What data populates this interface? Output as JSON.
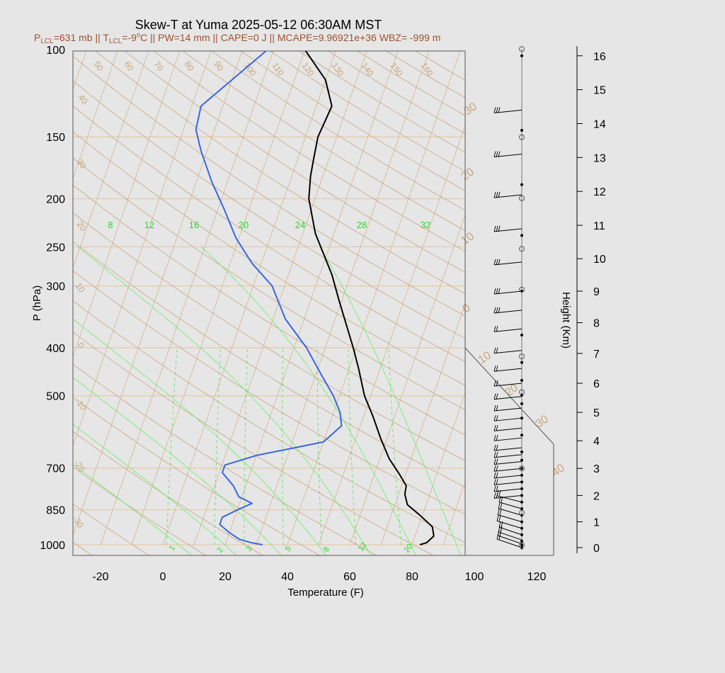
{
  "chart_data": {
    "type": "line",
    "title": "Skew-T at Yuma 2025-05-12 06:30AM MST",
    "subtitle": {
      "lcl_p_label": "P",
      "lcl_p_sub": "LCL",
      "lcl_p_value": "=631 mb",
      "sep1": " || ",
      "lcl_t_label": "T",
      "lcl_t_sub": "LCL",
      "lcl_t_value": "=-9",
      "lcl_t_deg": "o",
      "lcl_t_unit": "C",
      "rest": " || PW=14 mm || CAPE=0 J || MCAPE=9.96921e+36 WBZ= -999 m"
    },
    "xlabel": "Temperature (F)",
    "ylabel": "P (hPa)",
    "y2label": "Height (Km)",
    "xlim": [
      -28,
      125
    ],
    "x_ticks": [
      "-20",
      "0",
      "20",
      "40",
      "60",
      "80",
      "100",
      "120"
    ],
    "y_ticks": [
      "100",
      "150",
      "200",
      "250",
      "300",
      "400",
      "500",
      "700",
      "850",
      "1000"
    ],
    "height_ticks": [
      "0",
      "1",
      "2",
      "3",
      "4",
      "5",
      "6",
      "7",
      "8",
      "9",
      "10",
      "11",
      "12",
      "13",
      "14",
      "15",
      "16"
    ],
    "isotherm_labels": [
      "50",
      "60",
      "70",
      "80",
      "90",
      "100",
      "110",
      "120",
      "130",
      "140",
      "150",
      "160"
    ],
    "dry_adiabat_labels": [
      "40",
      "30",
      "20",
      "10",
      "0",
      "-10",
      "-20",
      "-30"
    ],
    "right_labels": [
      "30",
      "20",
      "10",
      "0",
      "10",
      "20",
      "30",
      "40"
    ],
    "mixing_ratio_top": [
      "8",
      "12",
      "16",
      "20",
      "24",
      "28",
      "32"
    ],
    "mixing_ratio_bottom": [
      "1",
      "2",
      "3",
      "5",
      "8",
      "12",
      "20"
    ],
    "series": [
      {
        "name": "",
        "color": "#000000",
        "points": [
          [
            82.5,
            1000
          ],
          [
            84.5,
            990
          ],
          [
            86,
            960
          ],
          [
            84.5,
            920
          ],
          [
            79,
            870
          ],
          [
            74,
            830
          ],
          [
            72,
            790
          ],
          [
            71.5,
            760
          ],
          [
            68,
            720
          ],
          [
            63,
            670
          ],
          [
            58,
            610
          ],
          [
            53,
            550
          ],
          [
            48,
            500
          ],
          [
            43,
            440
          ],
          [
            39,
            400
          ],
          [
            29,
            320
          ],
          [
            24,
            285
          ],
          [
            14,
            235
          ],
          [
            8,
            200
          ],
          [
            6,
            180
          ],
          [
            5,
            165
          ],
          [
            4,
            150
          ],
          [
            5,
            130
          ],
          [
            0,
            115
          ],
          [
            -10,
            100
          ]
        ]
      },
      {
        "name": "",
        "color": "#3a66e0",
        "points": [
          [
            32,
            1000
          ],
          [
            28,
            990
          ],
          [
            24,
            975
          ],
          [
            20,
            945
          ],
          [
            16,
            910
          ],
          [
            16,
            880
          ],
          [
            20,
            850
          ],
          [
            24,
            825
          ],
          [
            19,
            800
          ],
          [
            16,
            760
          ],
          [
            11,
            715
          ],
          [
            11,
            690
          ],
          [
            20,
            660
          ],
          [
            40,
            620
          ],
          [
            44,
            575
          ],
          [
            42,
            540
          ],
          [
            38,
            500
          ],
          [
            32,
            455
          ],
          [
            24,
            400
          ],
          [
            14,
            350
          ],
          [
            6,
            300
          ],
          [
            -3,
            270
          ],
          [
            -11,
            240
          ],
          [
            -18,
            210
          ],
          [
            -25,
            185
          ],
          [
            -32,
            160
          ],
          [
            -36,
            145
          ],
          [
            -37,
            130
          ],
          [
            -30,
            115
          ],
          [
            -22,
            100
          ]
        ]
      }
    ],
    "wind_barb_heights_km": [
      0.0,
      0.15,
      0.3,
      0.5,
      0.75,
      1.0,
      1.25,
      1.5,
      1.75,
      2.0,
      2.25,
      2.5,
      2.75,
      3.0,
      3.25,
      3.5,
      3.75,
      4.1,
      4.45,
      4.8,
      5.15,
      5.55,
      6.0,
      6.5,
      7.1,
      7.8,
      8.4,
      9.0,
      9.9,
      10.9,
      11.9,
      13.1,
      14.4
    ],
    "wind_dots_km": [
      0.0,
      0.1,
      0.25,
      0.5,
      0.75,
      1.0,
      1.25,
      1.5,
      1.75,
      2.0,
      2.25,
      2.5,
      2.75,
      3.0,
      3.3,
      3.6,
      4.2,
      4.8,
      5.3,
      5.6,
      6.1,
      6.7,
      7.6,
      9.0,
      10.7,
      12.2,
      13.8,
      16.0
    ],
    "wind_circles_km": [
      0.1,
      1.35,
      3.0,
      5.7,
      6.9,
      9.05,
      10.3,
      11.8,
      13.6,
      16.2
    ]
  }
}
